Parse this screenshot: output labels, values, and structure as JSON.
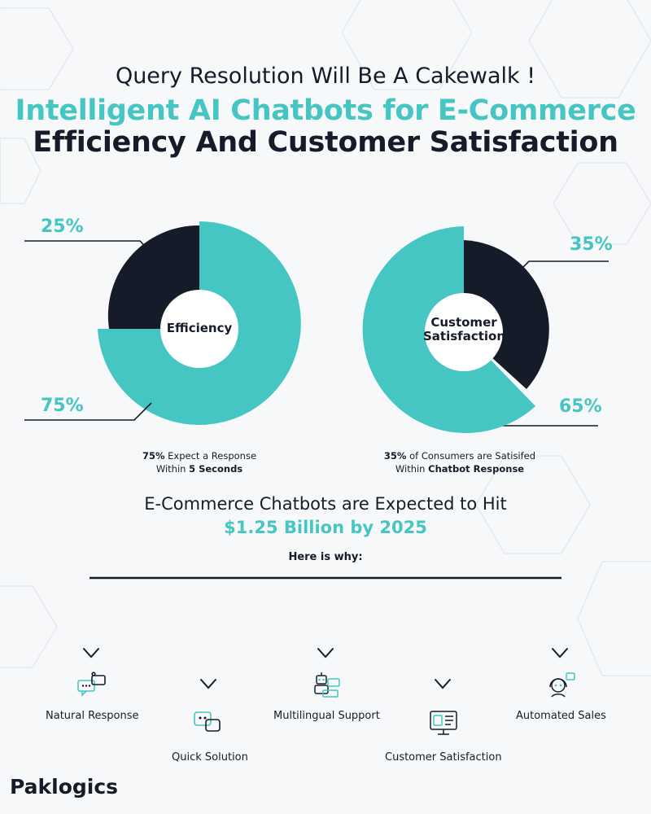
{
  "header": {
    "subtitle": "Query Resolution Will Be A Cakewalk !",
    "title_line1": "Intelligent AI Chatbots for E-Commerce",
    "title_line2": "Efficiency And Customer Satisfaction"
  },
  "colors": {
    "teal": "#45c6c2",
    "dark": "#151b29"
  },
  "charts": {
    "efficiency": {
      "center_label": "Efficiency",
      "segments": [
        {
          "label": "25%",
          "value": 25,
          "color": "#151b29"
        },
        {
          "label": "75%",
          "value": 75,
          "color": "#45c6c2"
        }
      ],
      "caption_bold": "75%",
      "caption_text1": " Expect a Response",
      "caption_text2": "Within ",
      "caption_bold2": "5 Seconds"
    },
    "satisfaction": {
      "center_label_line1": "Customer",
      "center_label_line2": "Satisfaction",
      "segments": [
        {
          "label": "35%",
          "value": 35,
          "color": "#151b29"
        },
        {
          "label": "65%",
          "value": 65,
          "color": "#45c6c2"
        }
      ],
      "caption_bold": "35%",
      "caption_text1": " of Consumers are Satisifed",
      "caption_text2": "Within ",
      "caption_bold2": "Chatbot Response"
    }
  },
  "market": {
    "line1": "E-Commerce Chatbots are Expected to Hit",
    "line2": "$1.25 Billion by 2025",
    "why": "Here is why:"
  },
  "features": [
    {
      "label": "Natural Response",
      "icon": "chat-bubbles-icon"
    },
    {
      "label": "Quick Solution",
      "icon": "bot-chat-icon"
    },
    {
      "label": "Multilingual Support",
      "icon": "robot-laptop-icon"
    },
    {
      "label": "Customer Satisfaction",
      "icon": "monitor-dashboard-icon"
    },
    {
      "label": "Automated Sales",
      "icon": "headset-agent-icon"
    }
  ],
  "brand": {
    "logo_text": "Paklogics"
  }
}
